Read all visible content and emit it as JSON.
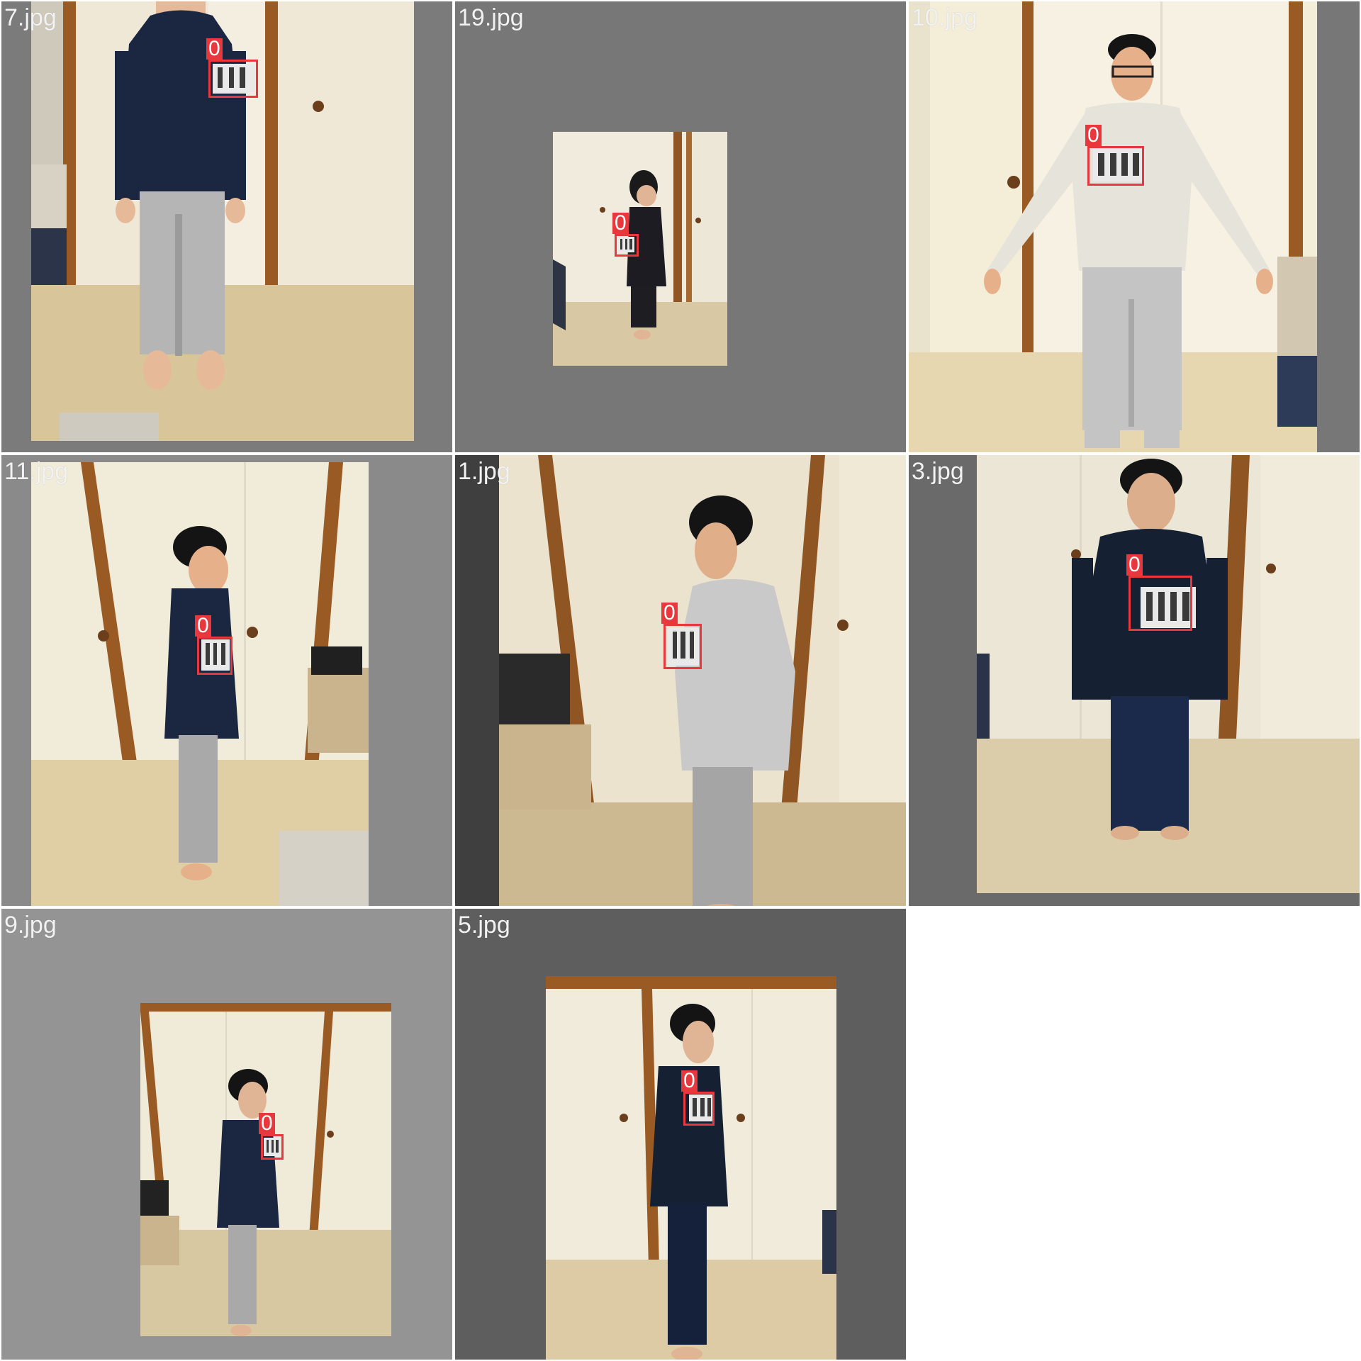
{
  "tiles": [
    {
      "label": "7.jpg",
      "background": "#7b7b7b",
      "sweater": "#1b2740",
      "pants": "#b5b5b5",
      "pose": "front-arms-down",
      "box_label": "0"
    },
    {
      "label": "19.jpg",
      "background": "#777777",
      "sweater": "#1c1c22",
      "pants": "#1d1d22",
      "pose": "side-small",
      "box_label": "0"
    },
    {
      "label": "10.jpg",
      "background": "#777777",
      "sweater": "#e6e3da",
      "pants": "#c4c4c4",
      "pose": "front-arms-out",
      "box_label": "0"
    },
    {
      "label": "11.jpg",
      "background": "#8a8a8a",
      "sweater": "#1b2740",
      "pants": "#a9a9a9",
      "pose": "side",
      "box_label": "0"
    },
    {
      "label": "1.jpg",
      "background": "#3f3f3f",
      "sweater": "#c9c9c9",
      "pants": "#a5a5a5",
      "pose": "side-large",
      "box_label": "0"
    },
    {
      "label": "3.jpg",
      "background": "#6a6a6a",
      "sweater": "#152033",
      "pants": "#1b2a4a",
      "pose": "front-arms-down",
      "box_label": "0"
    },
    {
      "label": "9.jpg",
      "background": "#949494",
      "sweater": "#1b2740",
      "pants": "#a9a9a9",
      "pose": "side-small",
      "box_label": "0"
    },
    {
      "label": "5.jpg",
      "background": "#5e5e5e",
      "sweater": "#152033",
      "pants": "#15203a",
      "pose": "side",
      "box_label": "0"
    }
  ]
}
